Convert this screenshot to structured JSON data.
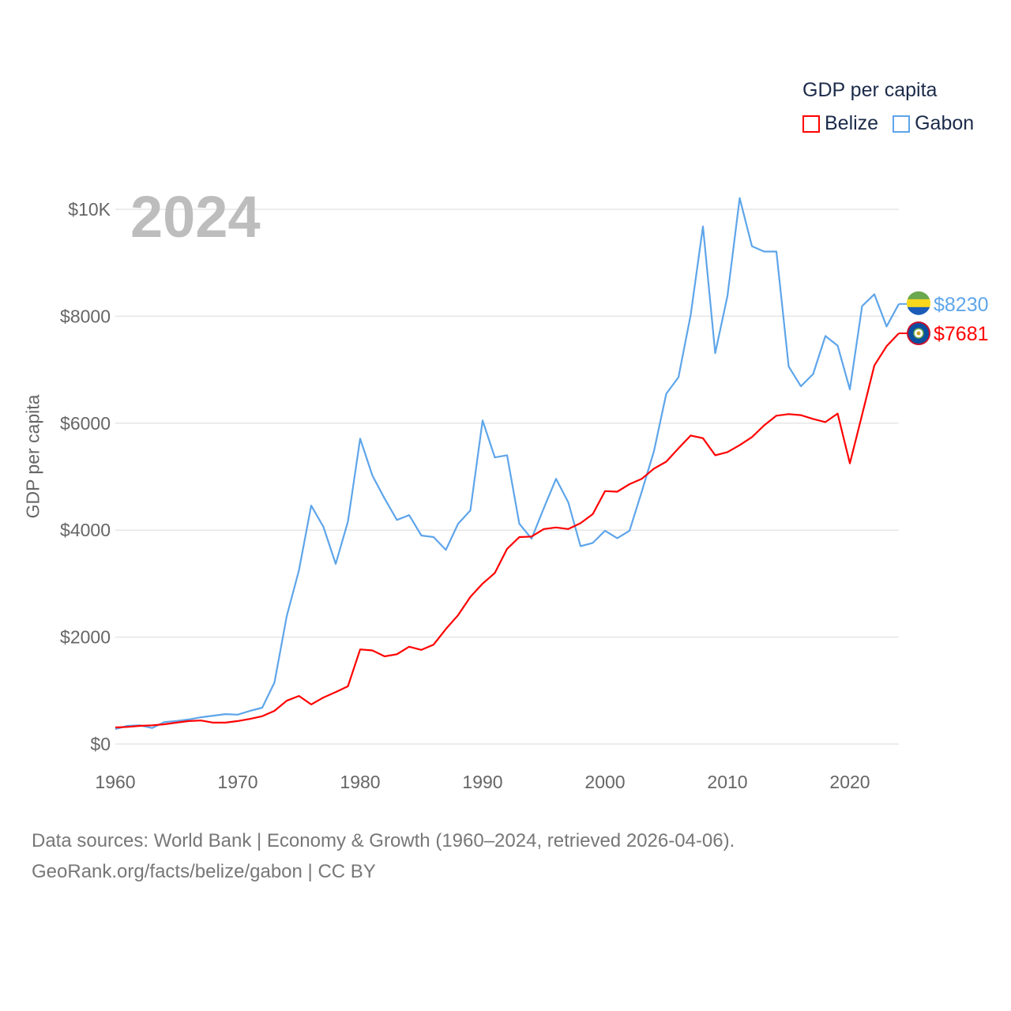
{
  "chart_data": {
    "type": "line",
    "title": "GDP per capita",
    "ylabel": "GDP per capita",
    "xlabel": "",
    "year_label": "2024",
    "xlim": [
      1960,
      2024
    ],
    "ylim": [
      0,
      10000
    ],
    "grid": true,
    "legend_placement": "top-right",
    "x_ticks": [
      1960,
      1970,
      1980,
      1990,
      2000,
      2010,
      2020
    ],
    "y_ticks": [
      {
        "value": 0,
        "label": "$0"
      },
      {
        "value": 2000,
        "label": "$2000"
      },
      {
        "value": 4000,
        "label": "$4000"
      },
      {
        "value": 6000,
        "label": "$6000"
      },
      {
        "value": 8000,
        "label": "$8000"
      },
      {
        "value": 10000,
        "label": "$10K"
      }
    ],
    "x_start": 1960,
    "series": [
      {
        "name": "Belize",
        "color": "#ff0000",
        "end_label": "$7681",
        "values": [
          310,
          320,
          340,
          350,
          370,
          400,
          430,
          440,
          400,
          400,
          430,
          470,
          520,
          620,
          810,
          900,
          740,
          870,
          970,
          1080,
          1770,
          1750,
          1640,
          1680,
          1820,
          1760,
          1860,
          2150,
          2410,
          2750,
          3000,
          3200,
          3650,
          3870,
          3880,
          4020,
          4050,
          4020,
          4130,
          4300,
          4730,
          4720,
          4860,
          4960,
          5150,
          5280,
          5530,
          5770,
          5720,
          5400,
          5460,
          5590,
          5740,
          5960,
          6140,
          6170,
          6150,
          6080,
          6020,
          6180,
          5250,
          6160,
          7080,
          7440,
          7681
        ]
      },
      {
        "name": "Gabon",
        "color": "#5ea5ea",
        "end_label": "$8230",
        "values": [
          280,
          340,
          350,
          300,
          410,
          430,
          460,
          500,
          530,
          560,
          550,
          620,
          680,
          1150,
          2390,
          3250,
          4460,
          4060,
          3370,
          4160,
          5710,
          5020,
          4590,
          4190,
          4280,
          3900,
          3870,
          3630,
          4120,
          4370,
          6050,
          5360,
          5400,
          4120,
          3840,
          4410,
          4960,
          4520,
          3700,
          3760,
          3990,
          3850,
          3990,
          4720,
          5480,
          6550,
          6860,
          8030,
          9680,
          7310,
          8380,
          10210,
          9310,
          9210,
          9210,
          7060,
          6690,
          6920,
          7630,
          7450,
          6630,
          8190,
          8410,
          7810,
          8230
        ]
      }
    ]
  },
  "source": {
    "line1": "Data sources: World Bank | Economy & Growth (1960–2024, retrieved 2026-04-06).",
    "line2": "GeoRank.org/facts/belize/gabon | CC BY"
  }
}
